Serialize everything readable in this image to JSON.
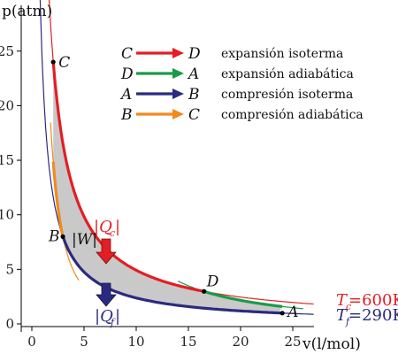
{
  "chart_data": {
    "type": "line",
    "xlabel": "v(l/mol)",
    "ylabel": "p(atm)",
    "xlim": [
      -1,
      28
    ],
    "ylim": [
      -0.5,
      28.8
    ],
    "xticks": [
      0,
      5,
      10,
      15,
      20,
      25
    ],
    "yticks": [
      0,
      5,
      10,
      15,
      20,
      25
    ],
    "grid": false,
    "legend_placement": "top-right",
    "legend": [
      {
        "from": "C",
        "to": "D",
        "label": "expansión isoterma",
        "color": "#e31e24"
      },
      {
        "from": "D",
        "to": "A",
        "label": "expansión adiabática",
        "color": "#1a9b48"
      },
      {
        "from": "A",
        "to": "B",
        "label": "compresión isoterma",
        "color": "#2b2a7f"
      },
      {
        "from": "B",
        "to": "C",
        "label": "compresión adiabática",
        "color": "#f08a1e"
      }
    ],
    "points": [
      {
        "name": "C",
        "x": 2.05,
        "y": 24.0
      },
      {
        "name": "D",
        "x": 16.5,
        "y": 2.98
      },
      {
        "name": "A",
        "x": 24.0,
        "y": 0.99
      },
      {
        "name": "B",
        "x": 2.97,
        "y": 8.0
      }
    ],
    "isotherms": [
      {
        "name": "T_c",
        "label_main": "T",
        "label_sub": "c",
        "label_value": "=600K",
        "T_K": 600,
        "pv_const": 49.2,
        "color": "#e31e24",
        "x_range": [
          1.65,
          27.0
        ]
      },
      {
        "name": "T_f",
        "label_main": "T",
        "label_sub": "f",
        "label_value": "=290K",
        "T_K": 290,
        "pv_const": 23.8,
        "color": "#2b2a7f",
        "x_range": [
          0.8,
          27.0
        ]
      }
    ],
    "adiabats": [
      {
        "name": "adiabat-DA",
        "gamma": 1.67,
        "color": "#1a9b48",
        "x_range": [
          14.0,
          26.0
        ]
      },
      {
        "name": "adiabat-BC",
        "gamma": 1.67,
        "color": "#f08a1e",
        "x_range": [
          1.8,
          4.5
        ]
      }
    ],
    "annotations": {
      "work_main": "|W|",
      "qc_main": "|Q",
      "qc_sub": "c",
      "qf_main": "|Q",
      "qf_sub": "f",
      "abs_bar": "|"
    }
  }
}
